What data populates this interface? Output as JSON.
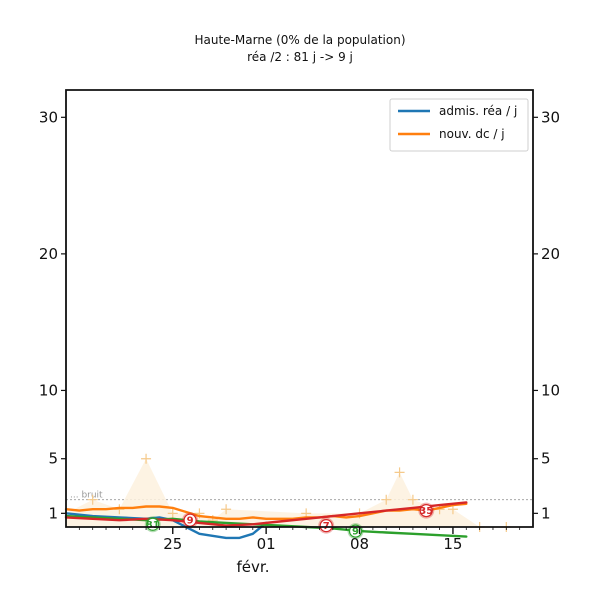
{
  "chart_data": {
    "type": "line",
    "title": "Haute-Marne (0% de la population)",
    "subtitle": "réa /2 : 81 j -> 9 j",
    "x_axis": {
      "month_label": "févr.",
      "ticks": [
        "25",
        "01",
        "08",
        "15"
      ],
      "tick_values": [
        25,
        32,
        39,
        46
      ],
      "range": [
        17,
        52
      ]
    },
    "y_axis": {
      "ticks": [
        1,
        5,
        10,
        20,
        30
      ],
      "range": [
        0,
        32
      ]
    },
    "noise_label": "bruit",
    "noise_level": 2.0,
    "grid": false,
    "legend_position": "top-right",
    "legend": [
      {
        "label": "admis. réa / j",
        "color": "#1f77b4"
      },
      {
        "label": "nouv. dc / j",
        "color": "#ff7f0e"
      }
    ],
    "series": [
      {
        "name": "admis. réa / j",
        "color": "#1f77b4",
        "x": [
          17,
          19,
          21,
          23,
          24,
          25,
          27,
          29,
          30,
          31,
          32
        ],
        "y": [
          1.0,
          0.8,
          0.7,
          0.6,
          0.7,
          0.5,
          -0.5,
          -0.8,
          -0.8,
          -0.5,
          0.3
        ]
      },
      {
        "name": "nouv. dc / j",
        "color": "#ff7f0e",
        "x": [
          17,
          18,
          19,
          20,
          21,
          22,
          23,
          24,
          25,
          26,
          27,
          28,
          29,
          30,
          31,
          32,
          33,
          34,
          35,
          36,
          37,
          38,
          39,
          40,
          41,
          42,
          43,
          44,
          45,
          46,
          47
        ],
        "y": [
          1.3,
          1.2,
          1.3,
          1.3,
          1.4,
          1.4,
          1.5,
          1.5,
          1.4,
          1.1,
          0.8,
          0.7,
          0.6,
          0.6,
          0.7,
          0.6,
          0.6,
          0.6,
          0.7,
          0.7,
          0.8,
          0.7,
          0.8,
          1.0,
          1.2,
          1.2,
          1.3,
          1.2,
          1.4,
          1.6,
          1.7
        ]
      },
      {
        "name": "",
        "color": "#2ca02c",
        "x": [
          17,
          19,
          21,
          23,
          25,
          27,
          29,
          31,
          33,
          35,
          37,
          39,
          41,
          43,
          45,
          47
        ],
        "y": [
          0.8,
          0.7,
          0.6,
          0.5,
          0.6,
          0.4,
          0.3,
          0.2,
          0.1,
          0.0,
          -0.1,
          -0.3,
          -0.4,
          -0.5,
          -0.6,
          -0.7
        ]
      },
      {
        "name": "",
        "color": "#d62728",
        "x": [
          17,
          19,
          21,
          23,
          25,
          27,
          29,
          31,
          33,
          35,
          37,
          39,
          41,
          43,
          45,
          47
        ],
        "y": [
          0.7,
          0.6,
          0.5,
          0.6,
          0.5,
          0.3,
          0.1,
          0.2,
          0.4,
          0.6,
          0.8,
          1.0,
          1.2,
          1.4,
          1.6,
          1.8
        ]
      }
    ],
    "scatter_points": {
      "color": "#f5c98a",
      "x": [
        17,
        19,
        21,
        23,
        25,
        27,
        28,
        29,
        35,
        39,
        41,
        42,
        43,
        45,
        46,
        48,
        50
      ],
      "y": [
        1.0,
        2.0,
        1.3,
        5.0,
        1.0,
        1.0,
        0.5,
        1.3,
        1.0,
        1.0,
        2.0,
        4.0,
        2.0,
        1.3,
        1.3,
        0.0,
        0.0
      ]
    },
    "annotations": [
      {
        "text": "81",
        "x": 23.5,
        "y": 0.2,
        "color": "#2ca02c"
      },
      {
        "text": "9",
        "x": 26.3,
        "y": 0.5,
        "color": "#d62728"
      },
      {
        "text": "7",
        "x": 36.5,
        "y": 0.1,
        "color": "#d62728"
      },
      {
        "text": "9",
        "x": 38.7,
        "y": -0.3,
        "color": "#2ca02c"
      },
      {
        "text": "35",
        "x": 44.0,
        "y": 1.2,
        "color": "#d62728"
      }
    ]
  }
}
